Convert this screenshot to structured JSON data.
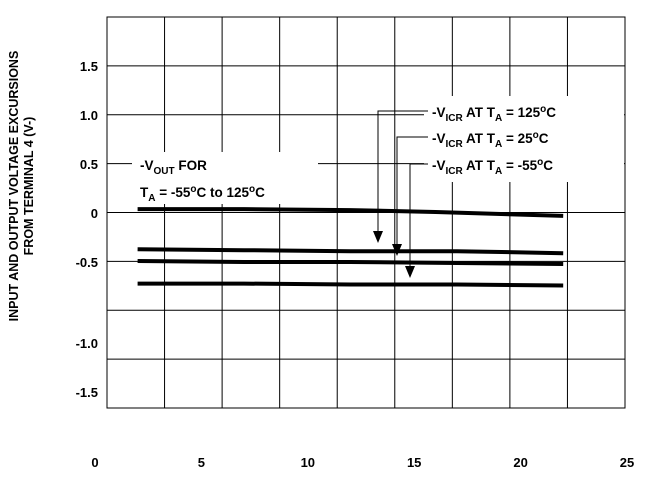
{
  "chart_data": {
    "type": "line",
    "ylabel_lines": [
      "INPUT AND OUTPUT VOLTAGE EXCURSIONS",
      "FROM TERMINAL 4 (V-)"
    ],
    "xlabel": "",
    "xlim": [
      0,
      25
    ],
    "ylim": [
      -2,
      2
    ],
    "x_ticks": [
      0,
      5,
      10,
      15,
      20,
      25
    ],
    "y_tick_labels": [
      {
        "value": 1.5,
        "text": "1.5"
      },
      {
        "value": 1.0,
        "text": "1.0"
      },
      {
        "value": 0.5,
        "text": "0.5"
      },
      {
        "value": 0,
        "text": "0"
      },
      {
        "value": -0.5,
        "text": "-0.5"
      },
      {
        "value": -1.0,
        "text": "-1.0"
      },
      {
        "value": -1.5,
        "text": "-1.5"
      }
    ],
    "grid": true,
    "series": [
      {
        "name": "-VOUT FOR TA = -55°C to 125°C",
        "x": [
          2,
          7,
          12,
          16,
          22
        ],
        "y": [
          0.04,
          0.04,
          0.03,
          0.01,
          -0.03
        ]
      },
      {
        "name": "-VICR AT TA = 125°C",
        "x": [
          2,
          7,
          12,
          17,
          22
        ],
        "y": [
          -0.37,
          -0.38,
          -0.39,
          -0.39,
          -0.41
        ]
      },
      {
        "name": "-VICR AT TA = 25°C",
        "x": [
          2,
          7,
          12,
          17,
          22
        ],
        "y": [
          -0.49,
          -0.5,
          -0.5,
          -0.51,
          -0.52
        ]
      },
      {
        "name": "-VICR AT TA = -55°C",
        "x": [
          2,
          7,
          12,
          17,
          22
        ],
        "y": [
          -0.72,
          -0.72,
          -0.73,
          -0.73,
          -0.74
        ]
      }
    ],
    "annotations": {
      "vout": {
        "prefix": "-V",
        "sub": "OUT",
        "suffix": " FOR",
        "line2_prefix": "T",
        "line2_sub": "A",
        "line2_mid": " = -55",
        "line2_sup": "o",
        "line2_mid2": "C to 125",
        "line2_sup2": "o",
        "line2_suffix": "C"
      },
      "icr": [
        {
          "prefix": "-V",
          "sub": "ICR",
          "mid": " AT T",
          "sub2": "A",
          "eq": " = 125",
          "sup": "o",
          "suffix": "C"
        },
        {
          "prefix": "-V",
          "sub": "ICR",
          "mid": " AT T",
          "sub2": "A",
          "eq": " = 25",
          "sup": "o",
          "suffix": "C"
        },
        {
          "prefix": "-V",
          "sub": "ICR",
          "mid": " AT T",
          "sub2": "A",
          "eq": " = -55",
          "sup": "o",
          "suffix": "C"
        }
      ]
    }
  }
}
